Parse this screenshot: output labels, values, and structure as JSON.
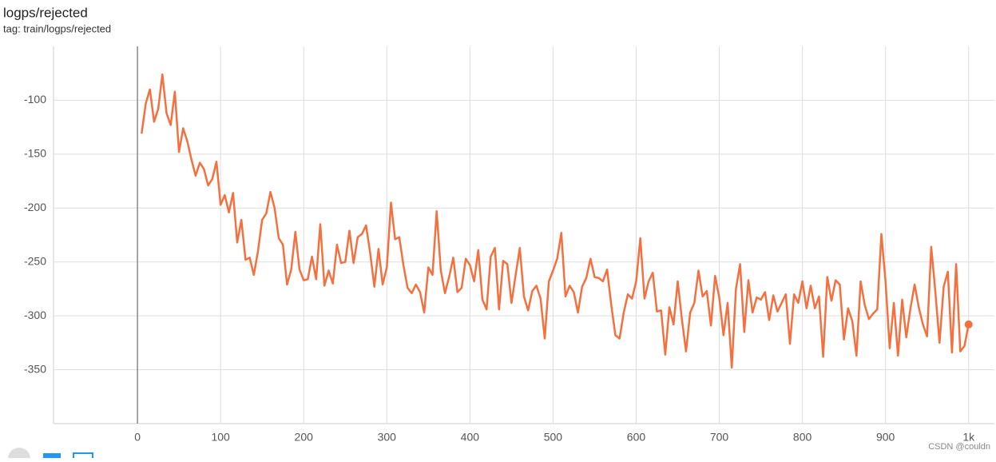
{
  "chart_data": {
    "type": "line",
    "title": "logps/rejected",
    "subtitle": "tag: train/logps/rejected",
    "watermark": "CSDN @couldn",
    "x": [
      5,
      10,
      15,
      20,
      25,
      30,
      35,
      40,
      45,
      50,
      55,
      60,
      65,
      70,
      75,
      80,
      85,
      90,
      95,
      100,
      105,
      110,
      115,
      120,
      125,
      130,
      135,
      140,
      145,
      150,
      155,
      160,
      165,
      170,
      175,
      180,
      185,
      190,
      195,
      200,
      205,
      210,
      215,
      220,
      225,
      230,
      235,
      240,
      245,
      250,
      255,
      260,
      265,
      270,
      275,
      280,
      285,
      290,
      295,
      300,
      305,
      310,
      315,
      320,
      325,
      330,
      335,
      340,
      345,
      350,
      355,
      360,
      365,
      370,
      375,
      380,
      385,
      390,
      395,
      400,
      405,
      410,
      415,
      420,
      425,
      430,
      435,
      440,
      445,
      450,
      455,
      460,
      465,
      470,
      475,
      480,
      485,
      490,
      495,
      500,
      505,
      510,
      515,
      520,
      525,
      530,
      535,
      540,
      545,
      550,
      555,
      560,
      565,
      570,
      575,
      580,
      585,
      590,
      595,
      600,
      605,
      610,
      615,
      620,
      625,
      630,
      635,
      640,
      645,
      650,
      655,
      660,
      665,
      670,
      675,
      680,
      685,
      690,
      695,
      700,
      705,
      710,
      715,
      720,
      725,
      730,
      735,
      740,
      745,
      750,
      755,
      760,
      765,
      770,
      775,
      780,
      785,
      790,
      795,
      800,
      805,
      810,
      815,
      820,
      825,
      830,
      835,
      840,
      845,
      850,
      855,
      860,
      865,
      870,
      875,
      880,
      885,
      890,
      895,
      900,
      905,
      910,
      915,
      920,
      925,
      930,
      935,
      940,
      945,
      950,
      955,
      960,
      965,
      970,
      975,
      980,
      985,
      990,
      995,
      1000
    ],
    "series": [
      {
        "color": "#f4703f",
        "values": [
          -131,
          -103,
          -90,
          -120,
          -108,
          -76,
          -112,
          -123,
          -92,
          -148,
          -126,
          -138,
          -155,
          -170,
          -158,
          -164,
          -179,
          -173,
          -157,
          -197,
          -188,
          -204,
          -186,
          -232,
          -211,
          -248,
          -246,
          -262,
          -240,
          -211,
          -205,
          -185,
          -200,
          -228,
          -234,
          -271,
          -257,
          -222,
          -257,
          -267,
          -266,
          -245,
          -266,
          -215,
          -272,
          -258,
          -270,
          -234,
          -251,
          -250,
          -221,
          -251,
          -227,
          -224,
          -216,
          -242,
          -273,
          -238,
          -271,
          -255,
          -195,
          -229,
          -227,
          -253,
          -274,
          -279,
          -271,
          -278,
          -297,
          -255,
          -262,
          -203,
          -258,
          -279,
          -264,
          -246,
          -278,
          -274,
          -247,
          -253,
          -268,
          -239,
          -285,
          -294,
          -245,
          -237,
          -294,
          -249,
          -252,
          -288,
          -262,
          -237,
          -282,
          -295,
          -277,
          -272,
          -284,
          -321,
          -268,
          -258,
          -247,
          -223,
          -282,
          -272,
          -278,
          -297,
          -273,
          -265,
          -247,
          -264,
          -265,
          -268,
          -257,
          -290,
          -318,
          -321,
          -297,
          -280,
          -284,
          -268,
          -228,
          -284,
          -268,
          -260,
          -296,
          -295,
          -336,
          -292,
          -308,
          -268,
          -303,
          -333,
          -297,
          -288,
          -258,
          -282,
          -277,
          -309,
          -263,
          -283,
          -318,
          -288,
          -348,
          -275,
          -252,
          -315,
          -267,
          -297,
          -283,
          -285,
          -278,
          -304,
          -281,
          -296,
          -288,
          -280,
          -326,
          -280,
          -288,
          -268,
          -293,
          -272,
          -293,
          -282,
          -338,
          -264,
          -286,
          -267,
          -271,
          -322,
          -293,
          -305,
          -337,
          -268,
          -290,
          -303,
          -298,
          -294,
          -224,
          -268,
          -330,
          -288,
          -337,
          -285,
          -320,
          -293,
          -271,
          -292,
          -308,
          -319,
          -236,
          -278,
          -325,
          -273,
          -259,
          -334,
          -252,
          -333,
          -328,
          -308
        ]
      }
    ],
    "xlim": [
      -101,
      1031
    ],
    "ylim": [
      -400,
      -50
    ],
    "xticks": [
      0,
      100,
      200,
      300,
      400,
      500,
      600,
      700,
      800,
      900,
      {
        "value": 1000,
        "label": "1k"
      }
    ],
    "yticks": [
      -100,
      -150,
      -200,
      -250,
      -300,
      -350
    ],
    "grid": true
  }
}
